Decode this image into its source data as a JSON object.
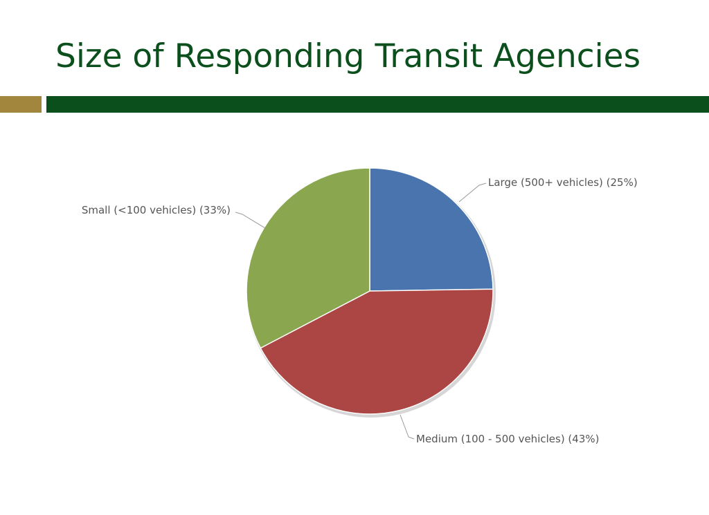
{
  "slide": {
    "title": "Size of Responding Transit Agencies"
  },
  "colors": {
    "title": "#0b4f1c",
    "rule_main": "#0b4f1c",
    "rule_accent": "#a3863e"
  },
  "chart_data": {
    "type": "pie",
    "title": "",
    "slices": [
      {
        "label": "Large (500+ vehicles) (25%)",
        "value": 25,
        "color": "#4a74ad"
      },
      {
        "label": "Medium (100 - 500 vehicles) (43%)",
        "value": 43,
        "color": "#ac4644"
      },
      {
        "label": "Small (<100 vehicles) (33%)",
        "value": 33,
        "color": "#8aa64f"
      }
    ],
    "start_angle_deg": 0,
    "direction": "clockwise",
    "legend": "none",
    "labels": "outside with leader lines"
  }
}
